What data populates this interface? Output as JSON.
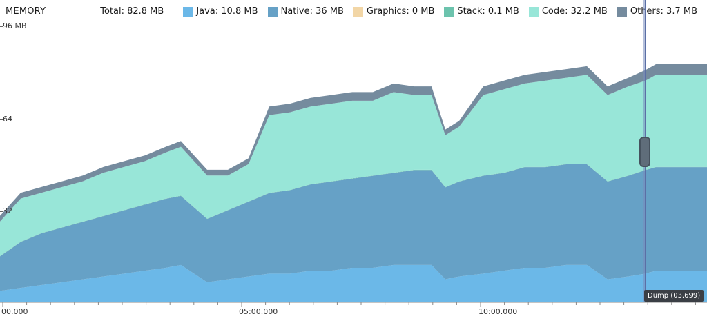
{
  "header": {
    "title": "MEMORY",
    "total": "Total: 82.8 MB",
    "legend": [
      {
        "label": "Java: 10.8 MB",
        "color": "#6bb8e8"
      },
      {
        "label": "Native: 36 MB",
        "color": "#66a1c6"
      },
      {
        "label": "Graphics: 0 MB",
        "color": "#f2d6a6"
      },
      {
        "label": "Stack: 0.1 MB",
        "color": "#6cc3ad"
      },
      {
        "label": "Code: 32.2 MB",
        "color": "#98e6d8"
      },
      {
        "label": "Others: 3.7 MB",
        "color": "#758b9e"
      }
    ]
  },
  "y_axis": {
    "ticks": [
      "96 MB",
      "64",
      "32"
    ]
  },
  "x_axis": {
    "ticks": [
      "00.000",
      "05:00.000",
      "10:00.000"
    ]
  },
  "selection": {
    "tooltip": "Dump (03.699)"
  },
  "chart_data": {
    "type": "area",
    "stacked": true,
    "title": "MEMORY",
    "ylim": [
      0,
      96
    ],
    "yticks": [
      "96 MB",
      "64",
      "32"
    ],
    "xticks": [
      "00.000",
      "05:00.000",
      "10:00.000"
    ],
    "x": [
      0,
      30,
      60,
      90,
      120,
      150,
      180,
      210,
      240,
      262,
      300,
      330,
      360,
      390,
      420,
      450,
      480,
      510,
      540,
      570,
      600,
      625,
      645,
      665,
      700,
      730,
      760,
      790,
      820,
      850,
      880,
      910,
      935,
      950,
      990,
      1024
    ],
    "series": [
      {
        "name": "Java",
        "color": "#6bb8e8",
        "values": [
          4,
          5,
          6,
          7,
          8,
          9,
          10,
          11,
          12,
          13,
          7,
          8,
          9,
          10,
          10,
          11,
          11,
          12,
          12,
          13,
          13,
          13,
          8,
          9,
          10,
          11,
          12,
          12,
          13,
          13,
          8,
          9,
          10,
          11,
          11,
          11
        ]
      },
      {
        "name": "Native",
        "color": "#66a1c6",
        "values": [
          12,
          16,
          18,
          19,
          20,
          21,
          22,
          23,
          24,
          24,
          22,
          24,
          26,
          28,
          29,
          30,
          31,
          31,
          32,
          32,
          33,
          33,
          32,
          33,
          34,
          34,
          35,
          35,
          35,
          35,
          34,
          35,
          36,
          36,
          36,
          36
        ]
      },
      {
        "name": "Graphics",
        "color": "#f2d6a6",
        "values": [
          0,
          0,
          0,
          0,
          0,
          0,
          0,
          0,
          0,
          0,
          0,
          0,
          0,
          0,
          0,
          0,
          0,
          0,
          0,
          0,
          0,
          0,
          0,
          0,
          0,
          0,
          0,
          0,
          0,
          0,
          0,
          0,
          0,
          0,
          0,
          0
        ]
      },
      {
        "name": "Stack",
        "color": "#6cc3ad",
        "values": [
          0.1,
          0.1,
          0.1,
          0.1,
          0.1,
          0.1,
          0.1,
          0.1,
          0.1,
          0.1,
          0.1,
          0.1,
          0.1,
          0.1,
          0.1,
          0.1,
          0.1,
          0.1,
          0.1,
          0.1,
          0.1,
          0.1,
          0.1,
          0.1,
          0.1,
          0.1,
          0.1,
          0.1,
          0.1,
          0.1,
          0.1,
          0.1,
          0.1,
          0.1,
          0.1,
          0.1
        ]
      },
      {
        "name": "Code",
        "color": "#98e6d8",
        "values": [
          12,
          15,
          14,
          14,
          14,
          15,
          15,
          15,
          16,
          17,
          15,
          12,
          13,
          27,
          27,
          27,
          27,
          27,
          26,
          28,
          26,
          26,
          18,
          19,
          28,
          29,
          29,
          30,
          30,
          31,
          30,
          31,
          31,
          32,
          32,
          32
        ]
      },
      {
        "name": "Others",
        "color": "#758b9e",
        "values": [
          2,
          2,
          2,
          2,
          2,
          2,
          2,
          2,
          2,
          2,
          2,
          2,
          2,
          3,
          3,
          3,
          3,
          3,
          3,
          3,
          3,
          3,
          2,
          2,
          3,
          3,
          3,
          3,
          3,
          3,
          3,
          3,
          3.7,
          3.7,
          3.7,
          3.7
        ]
      }
    ]
  }
}
